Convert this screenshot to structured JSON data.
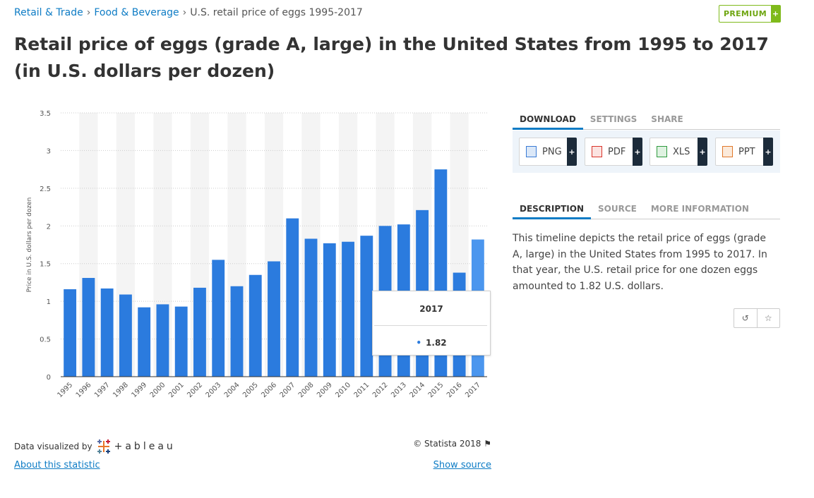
{
  "breadcrumb": {
    "items": [
      "Retail & Trade",
      "Food & Beverage"
    ],
    "current": "U.S. retail price of eggs 1995-2017",
    "separator": "›"
  },
  "premium": {
    "label": "PREMIUM",
    "plus": "+"
  },
  "page_title": "Retail price of eggs (grade A, large) in the United States from 1995 to 2017 (in U.S. dollars per dozen)",
  "chart_data": {
    "type": "bar",
    "categories": [
      "1995",
      "1996",
      "1997",
      "1998",
      "1999",
      "2000",
      "2001",
      "2002",
      "2003",
      "2004",
      "2005",
      "2006",
      "2007",
      "2008",
      "2009",
      "2010",
      "2011",
      "2012",
      "2013",
      "2014",
      "2015",
      "2016",
      "2017"
    ],
    "values": [
      1.16,
      1.31,
      1.17,
      1.09,
      0.92,
      0.96,
      0.93,
      1.18,
      1.55,
      1.2,
      1.35,
      1.53,
      2.1,
      1.83,
      1.77,
      1.79,
      1.87,
      2.0,
      2.02,
      2.21,
      2.75,
      1.38,
      1.82
    ],
    "ylabel": "Price in U.S. dollars per dozen",
    "xlabel": "",
    "ylim": [
      0,
      3.5
    ],
    "yticks": [
      "0",
      "0.5",
      "1",
      "1.5",
      "2",
      "2.5",
      "3",
      "3.5"
    ],
    "grid": true,
    "colors": {
      "bar": "#2b7bde",
      "highlight": "#4b96ee",
      "band": "#f4f4f4",
      "grid": "#cccccc"
    },
    "highlighted_index": 22,
    "tooltip": {
      "year": "2017",
      "value": "1.82"
    }
  },
  "credits": {
    "data_visualized": "Data visualized by",
    "tableau": "+ableau",
    "copyright": "© Statista 2018",
    "about": "About this statistic",
    "show_source": "Show source"
  },
  "top_tabs": [
    "DOWNLOAD",
    "SETTINGS",
    "SHARE"
  ],
  "downloads": [
    {
      "label": "PNG",
      "icon": "png-file-icon",
      "color": "#3a7bd5"
    },
    {
      "label": "PDF",
      "icon": "pdf-file-icon",
      "color": "#d9342b"
    },
    {
      "label": "XLS",
      "icon": "xls-file-icon",
      "color": "#2e9a3e"
    },
    {
      "label": "PPT",
      "icon": "ppt-file-icon",
      "color": "#e0782b"
    }
  ],
  "download_plus": "+",
  "info_tabs": [
    "DESCRIPTION",
    "SOURCE",
    "MORE INFORMATION"
  ],
  "description": "This timeline depicts the retail price of eggs (grade A, large) in the United States from 1995 to 2017. In that year, the U.S. retail price for one dozen eggs amounted to 1.82 U.S. dollars.",
  "icon_buttons": [
    "reset-icon",
    "star-icon"
  ]
}
